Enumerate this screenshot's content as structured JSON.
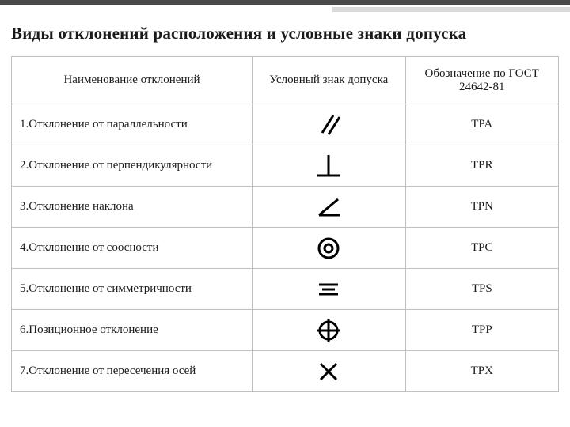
{
  "title": "Виды отклонений расположения и условные знаки допуска",
  "columns": {
    "c1": "Наименование отклонений",
    "c2": "Условный знак допуска",
    "c3": "Обозначение по ГОСТ 24642-81"
  },
  "rows": [
    {
      "label": "1.Отклонение от параллельности",
      "icon": "parallel",
      "code": "TPA"
    },
    {
      "label": "2.Отклонение от перпендикулярности",
      "icon": "perpendicular",
      "code": "TPR"
    },
    {
      "label": "3.Отклонение наклона",
      "icon": "angularity",
      "code": "TPN"
    },
    {
      "label": "4.Отклонение от соосности",
      "icon": "concentricity",
      "code": "TPC"
    },
    {
      "label": "5.Отклонение от симметричности",
      "icon": "symmetry",
      "code": "TPS"
    },
    {
      "label": "6.Позиционное отклонение",
      "icon": "position",
      "code": "TPP"
    },
    {
      "label": "7.Отклонение от пересечения осей",
      "icon": "cross",
      "code": "TPX"
    }
  ],
  "style": {
    "stroke": "#000000",
    "stroke_width": 3,
    "icon_box": 36
  }
}
